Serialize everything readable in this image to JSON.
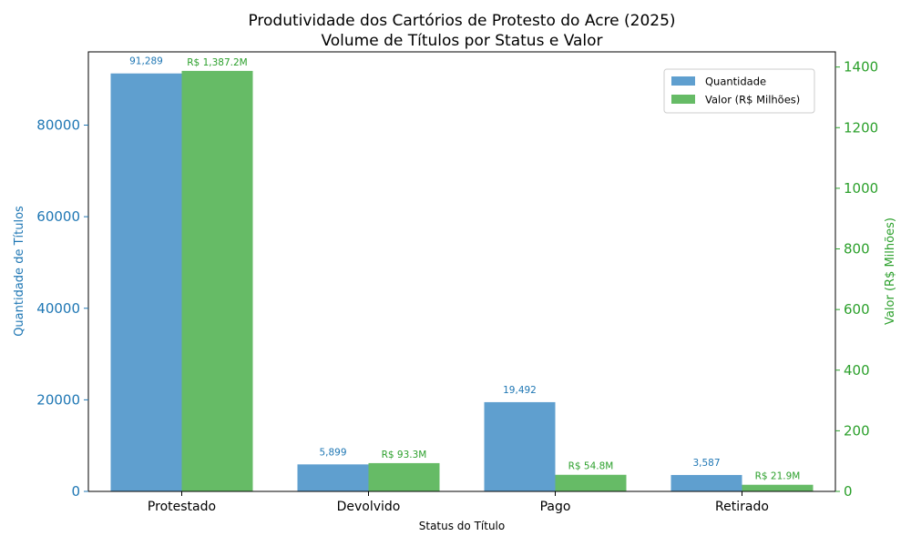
{
  "chart_data": {
    "type": "bar",
    "title": "Produtividade dos Cartórios de Protesto do Acre (2025)",
    "subtitle": "Volume de Títulos por Status e Valor",
    "xlabel": "Status do Título",
    "ylabel": "Quantidade de Títulos",
    "ylabel_right": "Valor (R$ Milhões)",
    "categories": [
      "Protestado",
      "Devolvido",
      "Pago",
      "Retirado"
    ],
    "ylim": [
      0,
      96000
    ],
    "ylim_right": [
      0,
      1450
    ],
    "yticks": [
      "0",
      "20000",
      "40000",
      "60000",
      "80000"
    ],
    "yticks_right": [
      "0",
      "200",
      "400",
      "600",
      "800",
      "1000",
      "1200",
      "1400"
    ],
    "series": [
      {
        "name": "Quantidade",
        "axis": "left",
        "color": "#5f9fcf",
        "values": [
          91289,
          5899,
          19492,
          3587
        ],
        "labels": [
          "91,289",
          "5,899",
          "19,492",
          "3,587"
        ]
      },
      {
        "name": "Valor (R$ Milhões)",
        "axis": "right",
        "color": "#66bb66",
        "values": [
          1387.2,
          93.3,
          54.8,
          21.9
        ],
        "labels": [
          "R$ 1,387.2M",
          "R$ 93.3M",
          "R$ 54.8M",
          "R$ 21.9M"
        ]
      }
    ],
    "legend_position": "top-right",
    "grid": false
  }
}
